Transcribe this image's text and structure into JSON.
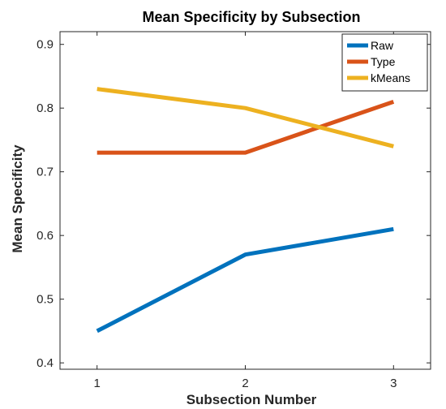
{
  "chart_data": {
    "type": "line",
    "title": "Mean Specificity by Subsection",
    "xlabel": "Subsection Number",
    "ylabel": "Mean Specificity",
    "x": [
      1,
      2,
      3
    ],
    "xlim": [
      0.75,
      3.25
    ],
    "ylim": [
      0.39,
      0.92
    ],
    "xticks": [
      "1",
      "2",
      "3"
    ],
    "yticks": [
      "0.4",
      "0.5",
      "0.6",
      "0.7",
      "0.8",
      "0.9"
    ],
    "grid": false,
    "legend_position": "top-right",
    "series": [
      {
        "name": "Raw",
        "color": "#0072BD",
        "values": [
          0.45,
          0.57,
          0.61
        ]
      },
      {
        "name": "Type",
        "color": "#D95319",
        "values": [
          0.73,
          0.73,
          0.81
        ]
      },
      {
        "name": "kMeans",
        "color": "#EDB120",
        "values": [
          0.83,
          0.8,
          0.74
        ]
      }
    ]
  }
}
